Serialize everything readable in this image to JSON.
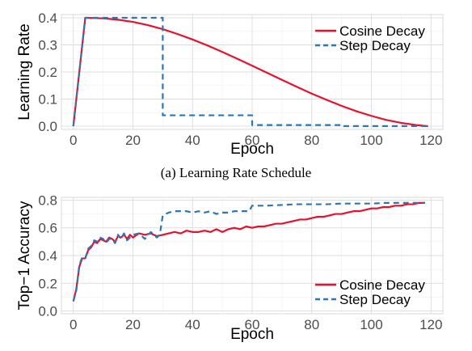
{
  "caption_a": "(a) Learning Rate Schedule",
  "colors": {
    "cosine": "#e8112d",
    "step": "#2b77b5"
  },
  "chart_data": [
    {
      "type": "line",
      "xlabel": "Epoch",
      "ylabel": "Learning Rate",
      "xlim": [
        -4,
        124
      ],
      "ylim": [
        -0.012,
        0.412
      ],
      "xticks": [
        0,
        20,
        40,
        60,
        80,
        100,
        120
      ],
      "xtick_labels": [
        "0",
        "20",
        "40",
        "60",
        "80",
        "100",
        "120"
      ],
      "yticks": [
        0.0,
        0.1,
        0.2,
        0.3,
        0.4
      ],
      "ytick_labels": [
        "0.0",
        "0.1",
        "0.2",
        "0.3",
        "0.4"
      ],
      "grid": true,
      "legend_position": "top-right",
      "series": [
        {
          "name": "Cosine Decay",
          "style": "solid",
          "x": [
            0,
            4,
            10,
            15,
            20,
            25,
            30,
            35,
            40,
            45,
            50,
            55,
            60,
            65,
            70,
            75,
            80,
            85,
            90,
            95,
            100,
            105,
            110,
            115,
            119
          ],
          "y": [
            0,
            0.4,
            0.398,
            0.393,
            0.385,
            0.373,
            0.358,
            0.34,
            0.32,
            0.298,
            0.274,
            0.249,
            0.223,
            0.197,
            0.171,
            0.145,
            0.12,
            0.097,
            0.075,
            0.055,
            0.038,
            0.023,
            0.012,
            0.004,
            0.0
          ]
        },
        {
          "name": "Step Decay",
          "style": "dashed",
          "x": [
            0,
            4,
            30,
            30,
            60,
            60,
            90,
            90,
            119
          ],
          "y": [
            0,
            0.4,
            0.4,
            0.04,
            0.04,
            0.004,
            0.004,
            0.0004,
            0.0004
          ]
        }
      ]
    },
    {
      "type": "line",
      "xlabel": "Epoch",
      "ylabel": "Top−1 Accuracy",
      "xlim": [
        -4,
        124
      ],
      "ylim": [
        -0.02,
        0.82
      ],
      "xticks": [
        0,
        20,
        40,
        60,
        80,
        100,
        120
      ],
      "xtick_labels": [
        "0",
        "20",
        "40",
        "60",
        "80",
        "100",
        "120"
      ],
      "yticks": [
        0.0,
        0.2,
        0.4,
        0.6,
        0.8
      ],
      "ytick_labels": [
        "0.0",
        "0.2",
        "0.4",
        "0.6",
        "0.8"
      ],
      "grid": true,
      "legend_position": "bottom-right",
      "series": [
        {
          "name": "Cosine Decay",
          "style": "solid",
          "x": [
            0,
            1,
            2,
            3,
            4,
            5,
            6,
            7,
            8,
            9,
            10,
            11,
            12,
            13,
            14,
            15,
            16,
            17,
            18,
            19,
            20,
            22,
            24,
            26,
            28,
            30,
            32,
            34,
            36,
            38,
            40,
            42,
            44,
            46,
            48,
            50,
            52,
            54,
            56,
            58,
            60,
            62,
            64,
            66,
            68,
            70,
            72,
            74,
            76,
            78,
            80,
            82,
            84,
            86,
            88,
            90,
            92,
            94,
            96,
            98,
            100,
            102,
            104,
            106,
            108,
            110,
            112,
            114,
            116,
            118
          ],
          "y": [
            0.07,
            0.16,
            0.32,
            0.38,
            0.38,
            0.44,
            0.46,
            0.5,
            0.49,
            0.52,
            0.51,
            0.5,
            0.53,
            0.52,
            0.5,
            0.54,
            0.53,
            0.55,
            0.52,
            0.55,
            0.53,
            0.56,
            0.55,
            0.56,
            0.54,
            0.55,
            0.56,
            0.57,
            0.56,
            0.58,
            0.57,
            0.57,
            0.58,
            0.57,
            0.59,
            0.57,
            0.59,
            0.6,
            0.59,
            0.61,
            0.6,
            0.61,
            0.61,
            0.62,
            0.63,
            0.63,
            0.64,
            0.65,
            0.66,
            0.66,
            0.67,
            0.68,
            0.68,
            0.69,
            0.7,
            0.7,
            0.71,
            0.72,
            0.72,
            0.73,
            0.74,
            0.74,
            0.75,
            0.75,
            0.76,
            0.76,
            0.77,
            0.77,
            0.78,
            0.78
          ]
        },
        {
          "name": "Step Decay",
          "style": "dashed",
          "x": [
            0,
            1,
            2,
            3,
            4,
            5,
            6,
            7,
            8,
            9,
            10,
            11,
            12,
            13,
            14,
            15,
            16,
            17,
            18,
            19,
            20,
            22,
            24,
            26,
            28,
            29,
            30,
            32,
            34,
            36,
            38,
            40,
            42,
            44,
            46,
            48,
            50,
            52,
            54,
            56,
            58,
            59,
            60,
            62,
            65,
            70,
            75,
            80,
            85,
            90,
            95,
            100,
            105,
            110,
            115,
            118
          ],
          "y": [
            0.07,
            0.15,
            0.33,
            0.39,
            0.38,
            0.45,
            0.47,
            0.51,
            0.5,
            0.53,
            0.52,
            0.49,
            0.52,
            0.52,
            0.49,
            0.55,
            0.52,
            0.56,
            0.51,
            0.53,
            0.55,
            0.56,
            0.52,
            0.57,
            0.53,
            0.55,
            0.69,
            0.71,
            0.72,
            0.72,
            0.72,
            0.71,
            0.72,
            0.71,
            0.72,
            0.7,
            0.71,
            0.71,
            0.72,
            0.72,
            0.72,
            0.72,
            0.76,
            0.76,
            0.76,
            0.765,
            0.77,
            0.77,
            0.77,
            0.775,
            0.775,
            0.775,
            0.78,
            0.78,
            0.78,
            0.78
          ]
        }
      ]
    }
  ]
}
